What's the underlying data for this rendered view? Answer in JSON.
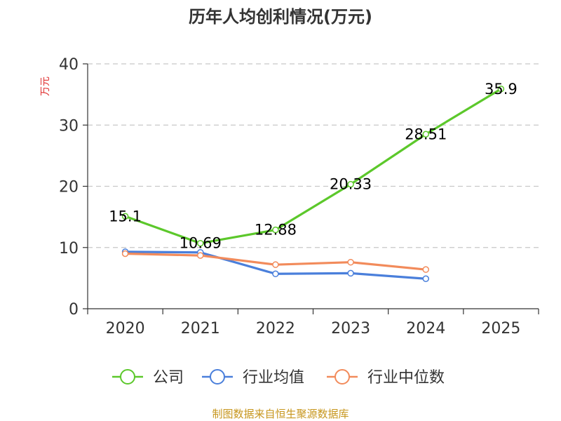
{
  "chart_data": {
    "type": "line",
    "title": "历年人均创利情况(万元)",
    "ylabel": "万元",
    "xlabel": "",
    "categories": [
      "2020",
      "2021",
      "2022",
      "2023",
      "2024",
      "2025"
    ],
    "ylim": [
      0,
      40
    ],
    "yticks": [
      0,
      10,
      20,
      30,
      40
    ],
    "grid": true,
    "legend_position": "bottom",
    "series": [
      {
        "name": "公司",
        "color": "#5cc82b",
        "values": [
          15.1,
          10.69,
          12.88,
          20.33,
          28.51,
          35.9
        ],
        "labels": [
          "15.1",
          "10.69",
          "12.88",
          "20.33",
          "28.51",
          "35.9"
        ]
      },
      {
        "name": "行业均值",
        "color": "#4a7fdb",
        "values": [
          9.3,
          9.2,
          5.7,
          5.8,
          4.9,
          null
        ]
      },
      {
        "name": "行业中位数",
        "color": "#f28b5b",
        "values": [
          9.0,
          8.7,
          7.2,
          7.6,
          6.4,
          null
        ]
      }
    ],
    "source": "制图数据来自恒生聚源数据库"
  },
  "colors": {
    "axis": "#333333",
    "grid": "#c8c8c8",
    "unit_label": "#e03030",
    "source": "#c7961d"
  }
}
